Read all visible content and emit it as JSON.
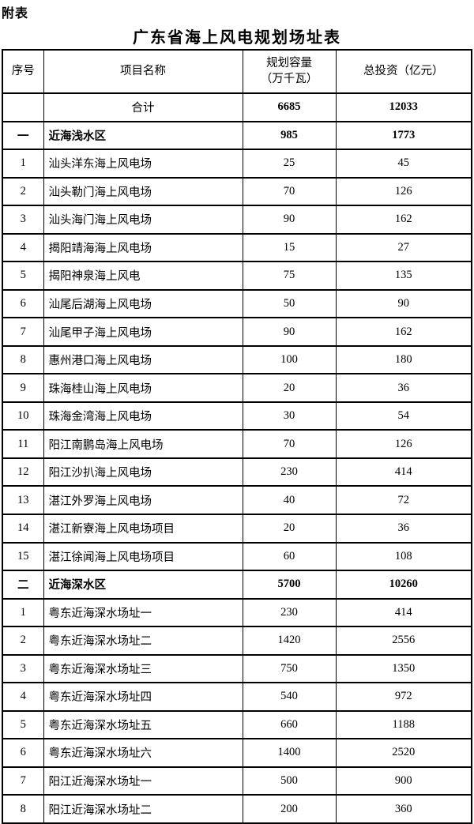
{
  "page_label": "附表",
  "title": "广东省海上风电规划场址表",
  "table": {
    "headers": [
      {
        "label": "序号"
      },
      {
        "label": "项目名称"
      },
      {
        "label": "规划容量",
        "sub": "（万千瓦）"
      },
      {
        "label": "总投资（亿元）"
      }
    ],
    "rows": [
      {
        "type": "total",
        "no": "",
        "name": "合计",
        "capacity": "6685",
        "investment": "12033"
      },
      {
        "type": "section",
        "no": "一",
        "name": "近海浅水区",
        "capacity": "985",
        "investment": "1773"
      },
      {
        "type": "item",
        "no": "1",
        "name": "汕头洋东海上风电场",
        "capacity": "25",
        "investment": "45"
      },
      {
        "type": "item",
        "no": "2",
        "name": "汕头勒门海上风电场",
        "capacity": "70",
        "investment": "126"
      },
      {
        "type": "item",
        "no": "3",
        "name": "汕头海门海上风电场",
        "capacity": "90",
        "investment": "162"
      },
      {
        "type": "item",
        "no": "4",
        "name": "揭阳靖海海上风电场",
        "capacity": "15",
        "investment": "27"
      },
      {
        "type": "item",
        "no": "5",
        "name": "揭阳神泉海上风电",
        "capacity": "75",
        "investment": "135"
      },
      {
        "type": "item",
        "no": "6",
        "name": "汕尾后湖海上风电场",
        "capacity": "50",
        "investment": "90"
      },
      {
        "type": "item",
        "no": "7",
        "name": "汕尾甲子海上风电场",
        "capacity": "90",
        "investment": "162"
      },
      {
        "type": "item",
        "no": "8",
        "name": "惠州港口海上风电场",
        "capacity": "100",
        "investment": "180"
      },
      {
        "type": "item",
        "no": "9",
        "name": "珠海桂山海上风电场",
        "capacity": "20",
        "investment": "36"
      },
      {
        "type": "item",
        "no": "10",
        "name": "珠海金湾海上风电场",
        "capacity": "30",
        "investment": "54"
      },
      {
        "type": "item",
        "no": "11",
        "name": "阳江南鹏岛海上风电场",
        "capacity": "70",
        "investment": "126"
      },
      {
        "type": "item",
        "no": "12",
        "name": "阳江沙扒海上风电场",
        "capacity": "230",
        "investment": "414"
      },
      {
        "type": "item",
        "no": "13",
        "name": "湛江外罗海上风电场",
        "capacity": "40",
        "investment": "72"
      },
      {
        "type": "item",
        "no": "14",
        "name": "湛江新寮海上风电场项目",
        "capacity": "20",
        "investment": "36"
      },
      {
        "type": "item",
        "no": "15",
        "name": "湛江徐闻海上风电场项目",
        "capacity": "60",
        "investment": "108"
      },
      {
        "type": "section",
        "no": "二",
        "name": "近海深水区",
        "capacity": "5700",
        "investment": "10260"
      },
      {
        "type": "item",
        "no": "1",
        "name": "粤东近海深水场址一",
        "capacity": "230",
        "investment": "414"
      },
      {
        "type": "item",
        "no": "2",
        "name": "粤东近海深水场址二",
        "capacity": "1420",
        "investment": "2556"
      },
      {
        "type": "item",
        "no": "3",
        "name": "粤东近海深水场址三",
        "capacity": "750",
        "investment": "1350"
      },
      {
        "type": "item",
        "no": "4",
        "name": "粤东近海深水场址四",
        "capacity": "540",
        "investment": "972"
      },
      {
        "type": "item",
        "no": "5",
        "name": "粤东近海深水场址五",
        "capacity": "660",
        "investment": "1188"
      },
      {
        "type": "item",
        "no": "6",
        "name": "粤东近海深水场址六",
        "capacity": "1400",
        "investment": "2520"
      },
      {
        "type": "item",
        "no": "7",
        "name": "阳江近海深水场址一",
        "capacity": "500",
        "investment": "900"
      },
      {
        "type": "item",
        "no": "8",
        "name": "阳江近海深水场址二",
        "capacity": "200",
        "investment": "360"
      }
    ]
  }
}
